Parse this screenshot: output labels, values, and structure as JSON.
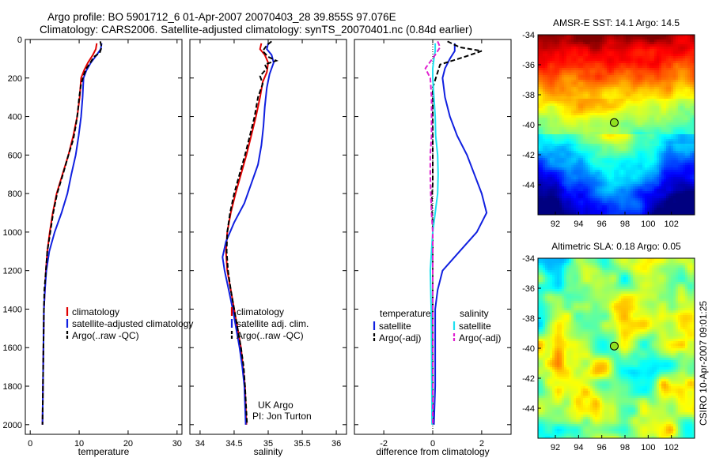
{
  "header": {
    "line1": "Argo profile: BO 5901712_6 01-Apr-2007 20070403_28 39.855S 97.076E",
    "line2": "Climatology: CARS2006. Satellite-adjusted climatology: synTS_20070401.nc (0.84d earlier)"
  },
  "side_label": "CSIRO 10-Apr-2007 09:01:25",
  "colors": {
    "climatology": "#e00000",
    "satellite": "#1020e0",
    "argo": "#000000",
    "sal_satellite": "#20e0f0",
    "sal_argo": "#e020d0",
    "marker": "#90e020"
  },
  "chart_data": [
    {
      "type": "line",
      "panel": "temperature",
      "xlabel": "temperature",
      "xlim": [
        -1,
        31
      ],
      "ylim": [
        2050,
        0
      ],
      "xticks": [
        0,
        10,
        20,
        30
      ],
      "yticks": [
        0,
        200,
        400,
        600,
        800,
        1000,
        1200,
        1400,
        1600,
        1800,
        2000
      ],
      "legend_items": [
        "climatology",
        "satellite-adjusted climatology",
        "Argo(..raw -QC)"
      ],
      "series": [
        {
          "name": "climatology",
          "color": "#e00000",
          "dash": "",
          "points": [
            [
              13.6,
              20
            ],
            [
              13.4,
              50
            ],
            [
              12.8,
              80
            ],
            [
              11.8,
              120
            ],
            [
              11.0,
              160
            ],
            [
              10.4,
              200
            ],
            [
              10.1,
              300
            ],
            [
              9.6,
              400
            ],
            [
              8.8,
              500
            ],
            [
              7.8,
              600
            ],
            [
              6.6,
              700
            ],
            [
              5.4,
              800
            ],
            [
              4.6,
              900
            ],
            [
              4.0,
              1000
            ],
            [
              3.5,
              1100
            ],
            [
              3.2,
              1200
            ],
            [
              3.0,
              1300
            ],
            [
              2.8,
              1400
            ],
            [
              2.7,
              1600
            ],
            [
              2.6,
              1800
            ],
            [
              2.5,
              2000
            ]
          ]
        },
        {
          "name": "satellite-adjusted climatology",
          "color": "#1020e0",
          "dash": "",
          "points": [
            [
              14.6,
              20
            ],
            [
              14.4,
              50
            ],
            [
              13.6,
              80
            ],
            [
              12.4,
              120
            ],
            [
              11.5,
              160
            ],
            [
              10.9,
              200
            ],
            [
              10.7,
              300
            ],
            [
              10.4,
              400
            ],
            [
              9.9,
              500
            ],
            [
              9.3,
              600
            ],
            [
              8.4,
              700
            ],
            [
              7.6,
              800
            ],
            [
              6.4,
              900
            ],
            [
              5.0,
              1000
            ],
            [
              3.9,
              1100
            ],
            [
              3.3,
              1200
            ],
            [
              3.0,
              1300
            ],
            [
              2.8,
              1400
            ],
            [
              2.7,
              1600
            ],
            [
              2.6,
              1800
            ],
            [
              2.5,
              2000
            ]
          ]
        },
        {
          "name": "Argo(..raw -QC)",
          "color": "#000000",
          "dash": "6,3",
          "points": [
            [
              14.3,
              10
            ],
            [
              14.6,
              40
            ],
            [
              14.2,
              70
            ],
            [
              13.0,
              90
            ],
            [
              12.3,
              120
            ],
            [
              11.5,
              150
            ],
            [
              11.0,
              180
            ],
            [
              10.4,
              230
            ],
            [
              10.0,
              300
            ],
            [
              9.7,
              380
            ],
            [
              9.3,
              450
            ],
            [
              8.8,
              520
            ],
            [
              7.8,
              600
            ],
            [
              6.7,
              700
            ],
            [
              5.5,
              800
            ],
            [
              4.7,
              900
            ],
            [
              4.1,
              1000
            ],
            [
              3.5,
              1100
            ],
            [
              3.2,
              1200
            ],
            [
              2.9,
              1300
            ],
            [
              2.8,
              1400
            ],
            [
              2.7,
              1600
            ],
            [
              2.6,
              1800
            ],
            [
              2.5,
              2000
            ]
          ]
        }
      ]
    },
    {
      "type": "line",
      "panel": "salinity",
      "xlabel": "salinity",
      "xlim": [
        33.85,
        36.15
      ],
      "ylim": [
        2050,
        0
      ],
      "xticks": [
        34,
        34.5,
        35,
        35.5,
        36
      ],
      "legend_items": [
        "climatology",
        "satellite adj. clim.",
        "Argo(..raw -QC)"
      ],
      "annotation": [
        "UK Argo",
        "PI: Jon Turton"
      ],
      "series": [
        {
          "name": "climatology",
          "color": "#e00000",
          "dash": "",
          "points": [
            [
              34.9,
              20
            ],
            [
              34.88,
              50
            ],
            [
              34.95,
              80
            ],
            [
              35.0,
              120
            ],
            [
              34.98,
              170
            ],
            [
              34.92,
              220
            ],
            [
              34.88,
              300
            ],
            [
              34.82,
              400
            ],
            [
              34.75,
              500
            ],
            [
              34.68,
              600
            ],
            [
              34.6,
              700
            ],
            [
              34.52,
              800
            ],
            [
              34.45,
              900
            ],
            [
              34.4,
              1000
            ],
            [
              34.38,
              1100
            ],
            [
              34.4,
              1200
            ],
            [
              34.45,
              1300
            ],
            [
              34.5,
              1400
            ],
            [
              34.55,
              1500
            ],
            [
              34.6,
              1600
            ],
            [
              34.63,
              1700
            ],
            [
              34.66,
              1800
            ],
            [
              34.68,
              2000
            ]
          ]
        },
        {
          "name": "satellite adj. clim.",
          "color": "#1020e0",
          "dash": "",
          "points": [
            [
              35.0,
              20
            ],
            [
              34.98,
              50
            ],
            [
              35.05,
              80
            ],
            [
              35.08,
              120
            ],
            [
              35.02,
              180
            ],
            [
              34.98,
              250
            ],
            [
              34.95,
              350
            ],
            [
              34.93,
              450
            ],
            [
              34.9,
              550
            ],
            [
              34.85,
              650
            ],
            [
              34.75,
              750
            ],
            [
              34.65,
              850
            ],
            [
              34.5,
              950
            ],
            [
              34.38,
              1050
            ],
            [
              34.33,
              1130
            ],
            [
              34.36,
              1200
            ],
            [
              34.42,
              1300
            ],
            [
              34.48,
              1400
            ],
            [
              34.53,
              1500
            ],
            [
              34.58,
              1600
            ],
            [
              34.62,
              1700
            ],
            [
              34.65,
              1800
            ],
            [
              34.67,
              2000
            ]
          ]
        },
        {
          "name": "Argo(..raw -QC)",
          "color": "#000000",
          "dash": "6,3",
          "points": [
            [
              35.05,
              10
            ],
            [
              34.98,
              30
            ],
            [
              34.92,
              60
            ],
            [
              35.0,
              90
            ],
            [
              35.12,
              110
            ],
            [
              34.95,
              130
            ],
            [
              34.98,
              150
            ],
            [
              34.88,
              190
            ],
            [
              34.92,
              230
            ],
            [
              34.85,
              300
            ],
            [
              34.8,
              400
            ],
            [
              34.73,
              500
            ],
            [
              34.66,
              600
            ],
            [
              34.58,
              700
            ],
            [
              34.5,
              800
            ],
            [
              34.44,
              900
            ],
            [
              34.4,
              1000
            ],
            [
              34.39,
              1100
            ],
            [
              34.41,
              1200
            ],
            [
              34.45,
              1300
            ],
            [
              34.5,
              1400
            ],
            [
              34.55,
              1500
            ],
            [
              34.6,
              1600
            ],
            [
              34.64,
              1700
            ],
            [
              34.66,
              1800
            ],
            [
              34.69,
              2000
            ]
          ]
        }
      ]
    },
    {
      "type": "line",
      "panel": "difference",
      "xlabel": "difference from climatology",
      "xlim": [
        -3.2,
        3.2
      ],
      "ylim": [
        2050,
        0
      ],
      "xticks": [
        -2,
        0,
        2
      ],
      "legend_left_title": "temperature",
      "legend_left": [
        "satellite",
        "Argo(-adj)"
      ],
      "legend_right_title": "salinity",
      "legend_right": [
        "satellite",
        "Argo(-adj)"
      ],
      "series": [
        {
          "name": "satellite",
          "color": "#1020e0",
          "dash": "",
          "points": [
            [
              0.9,
              20
            ],
            [
              0.9,
              60
            ],
            [
              0.7,
              100
            ],
            [
              0.5,
              150
            ],
            [
              0.4,
              200
            ],
            [
              0.5,
              300
            ],
            [
              0.7,
              400
            ],
            [
              1.0,
              500
            ],
            [
              1.4,
              600
            ],
            [
              1.7,
              700
            ],
            [
              2.0,
              800
            ],
            [
              2.2,
              900
            ],
            [
              1.8,
              1000
            ],
            [
              1.1,
              1100
            ],
            [
              0.4,
              1200
            ],
            [
              0.2,
              1300
            ],
            [
              0.1,
              1400
            ],
            [
              0.1,
              1600
            ],
            [
              0.1,
              1800
            ],
            [
              0.05,
              2000
            ]
          ]
        },
        {
          "name": "Argo(-adj)",
          "color": "#000000",
          "dash": "6,3",
          "points": [
            [
              0.6,
              10
            ],
            [
              1.1,
              40
            ],
            [
              2.0,
              60
            ],
            [
              1.3,
              90
            ],
            [
              0.3,
              130
            ],
            [
              0.2,
              170
            ],
            [
              0.0,
              250
            ],
            [
              0.0,
              350
            ],
            [
              0.0,
              450
            ],
            [
              0.0,
              550
            ],
            [
              0.0,
              650
            ],
            [
              0.0,
              750
            ],
            [
              -0.05,
              850
            ],
            [
              0.0,
              950
            ],
            [
              0.0,
              1100
            ],
            [
              0.0,
              1300
            ],
            [
              0.0,
              1500
            ],
            [
              0.0,
              1700
            ],
            [
              0.0,
              2000
            ]
          ]
        },
        {
          "name": "salinity satellite",
          "color": "#20e0f0",
          "dash": "",
          "points": [
            [
              0.1,
              20
            ],
            [
              0.1,
              60
            ],
            [
              0.05,
              100
            ],
            [
              0.0,
              150
            ],
            [
              0.0,
              200
            ],
            [
              0.05,
              300
            ],
            [
              0.1,
              400
            ],
            [
              0.12,
              500
            ],
            [
              0.2,
              600
            ],
            [
              0.22,
              700
            ],
            [
              0.2,
              800
            ],
            [
              0.1,
              900
            ],
            [
              0.0,
              1000
            ],
            [
              -0.05,
              1100
            ],
            [
              -0.1,
              1200
            ],
            [
              -0.08,
              1300
            ],
            [
              -0.06,
              1400
            ],
            [
              -0.05,
              1600
            ],
            [
              -0.04,
              1800
            ],
            [
              -0.03,
              2000
            ]
          ]
        },
        {
          "name": "salinity Argo(-adj)",
          "color": "#e020d0",
          "dash": "6,3",
          "points": [
            [
              0.2,
              10
            ],
            [
              0.3,
              40
            ],
            [
              0.1,
              80
            ],
            [
              -0.3,
              150
            ],
            [
              -0.1,
              200
            ],
            [
              -0.05,
              300
            ],
            [
              -0.05,
              400
            ],
            [
              -0.05,
              500
            ],
            [
              -0.1,
              600
            ],
            [
              -0.1,
              700
            ],
            [
              -0.08,
              800
            ],
            [
              -0.05,
              900
            ],
            [
              0.0,
              1000
            ],
            [
              0.0,
              1100
            ],
            [
              0.0,
              1300
            ],
            [
              0.0,
              1500
            ],
            [
              0.0,
              1700
            ],
            [
              0.0,
              2000
            ]
          ]
        }
      ]
    },
    {
      "type": "heatmap",
      "panel": "sst",
      "title": "AMSR-E SST: 14.1 Argo: 14.5",
      "xlim": [
        90.5,
        104
      ],
      "ylim": [
        -46,
        -34
      ],
      "xticks": [
        92,
        94,
        96,
        98,
        100,
        102
      ],
      "yticks": [
        -34,
        -36,
        -38,
        -40,
        -42,
        -44
      ],
      "marker": [
        97.076,
        -39.855
      ]
    },
    {
      "type": "heatmap",
      "panel": "sla",
      "title": "Altimetric SLA: 0.18 Argo: 0.05",
      "xlim": [
        90.5,
        104
      ],
      "ylim": [
        -46,
        -34
      ],
      "xticks": [
        92,
        94,
        96,
        98,
        100,
        102
      ],
      "yticks": [
        -34,
        -36,
        -38,
        -40,
        -42,
        -44
      ],
      "marker": [
        97.076,
        -39.855
      ]
    }
  ]
}
